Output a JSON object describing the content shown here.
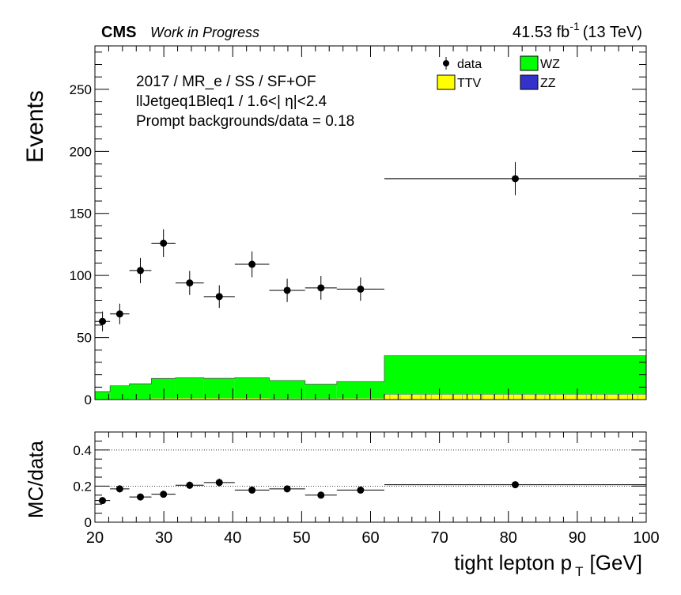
{
  "header": {
    "experiment": "CMS",
    "status": "Work in Progress",
    "lumi_value": "41.53 fb",
    "lumi_exp": "-1",
    "lumi_energy": "(13 TeV)"
  },
  "info": {
    "line1": "2017 / MR_e / SS / SF+OF",
    "line2": "llJetgeq1Bleq1 / 1.6<| η|<2.4",
    "line3": "Prompt backgrounds/data = 0.18"
  },
  "legend": {
    "data": "data",
    "wz": "WZ",
    "ttv": "TTV",
    "zz": "ZZ"
  },
  "colors": {
    "wz": "#00ff00",
    "ttv": "#ffff00",
    "zz": "#3333cc",
    "data": "#000000"
  },
  "chart_data": [
    {
      "type": "bar",
      "stacked": true,
      "ylabel": "Events",
      "ylim": [
        0,
        285
      ],
      "xlim": [
        20,
        100
      ],
      "yticks": [
        0,
        50,
        100,
        150,
        200,
        250
      ],
      "bin_edges": [
        20,
        22.2,
        25,
        28.2,
        31.7,
        35.8,
        40.3,
        45.3,
        50.5,
        55.1,
        62,
        100
      ],
      "series": [
        {
          "name": "TTV",
          "values": [
            0.3,
            0.5,
            0.6,
            0.9,
            1.0,
            1.0,
            1.0,
            0.8,
            0.8,
            0.9,
            4
          ]
        },
        {
          "name": "ZZ",
          "values": [
            0.1,
            0.1,
            0.1,
            0.1,
            0.1,
            0.1,
            0.1,
            0.1,
            0.1,
            0.1,
            0.3
          ]
        },
        {
          "name": "WZ",
          "values": [
            6,
            10.5,
            12,
            16,
            16.5,
            16,
            16.5,
            14.5,
            11.5,
            13.5,
            31
          ]
        }
      ],
      "data_points": [
        {
          "x": 21.1,
          "xerr": 1.1,
          "y": 63,
          "yerr": 8
        },
        {
          "x": 23.6,
          "xerr": 1.4,
          "y": 69,
          "yerr": 8.3
        },
        {
          "x": 26.6,
          "xerr": 1.6,
          "y": 104,
          "yerr": 10.2
        },
        {
          "x": 29.95,
          "xerr": 1.75,
          "y": 126,
          "yerr": 11.2
        },
        {
          "x": 33.75,
          "xerr": 2.05,
          "y": 94,
          "yerr": 9.7
        },
        {
          "x": 38.05,
          "xerr": 2.25,
          "y": 83,
          "yerr": 9.1
        },
        {
          "x": 42.8,
          "xerr": 2.5,
          "y": 109,
          "yerr": 10.4
        },
        {
          "x": 47.9,
          "xerr": 2.6,
          "y": 88,
          "yerr": 9.4
        },
        {
          "x": 52.8,
          "xerr": 2.3,
          "y": 90,
          "yerr": 9.5
        },
        {
          "x": 58.55,
          "xerr": 3.45,
          "y": 89,
          "yerr": 9.4
        },
        {
          "x": 81,
          "xerr": 19,
          "y": 178,
          "yerr": 13.3
        }
      ]
    },
    {
      "type": "scatter",
      "ylabel": "MC/data",
      "xlabel": "tight lepton p",
      "xlabel_sub": "T",
      "xlabel_unit": "[GeV]",
      "ylim": [
        0,
        0.5
      ],
      "xlim": [
        20,
        100
      ],
      "yticks": [
        0,
        0.2,
        0.4
      ],
      "xticks": [
        20,
        30,
        40,
        50,
        60,
        70,
        80,
        90,
        100
      ],
      "reference_lines": [
        0.2,
        0.4
      ],
      "points": [
        {
          "x": 21.1,
          "xerr": 1.1,
          "y": 0.12,
          "yerr": 0.015
        },
        {
          "x": 23.6,
          "xerr": 1.4,
          "y": 0.185,
          "yerr": 0.02
        },
        {
          "x": 26.6,
          "xerr": 1.6,
          "y": 0.14,
          "yerr": 0.013
        },
        {
          "x": 29.95,
          "xerr": 1.75,
          "y": 0.155,
          "yerr": 0.014
        },
        {
          "x": 33.75,
          "xerr": 2.05,
          "y": 0.205,
          "yerr": 0.02
        },
        {
          "x": 38.05,
          "xerr": 2.25,
          "y": 0.22,
          "yerr": 0.022
        },
        {
          "x": 42.8,
          "xerr": 2.5,
          "y": 0.178,
          "yerr": 0.017
        },
        {
          "x": 47.9,
          "xerr": 2.6,
          "y": 0.185,
          "yerr": 0.018
        },
        {
          "x": 52.8,
          "xerr": 2.3,
          "y": 0.15,
          "yerr": 0.015
        },
        {
          "x": 58.55,
          "xerr": 3.45,
          "y": 0.178,
          "yerr": 0.018
        },
        {
          "x": 81,
          "xerr": 19,
          "y": 0.208,
          "yerr": 0.015
        }
      ]
    }
  ]
}
